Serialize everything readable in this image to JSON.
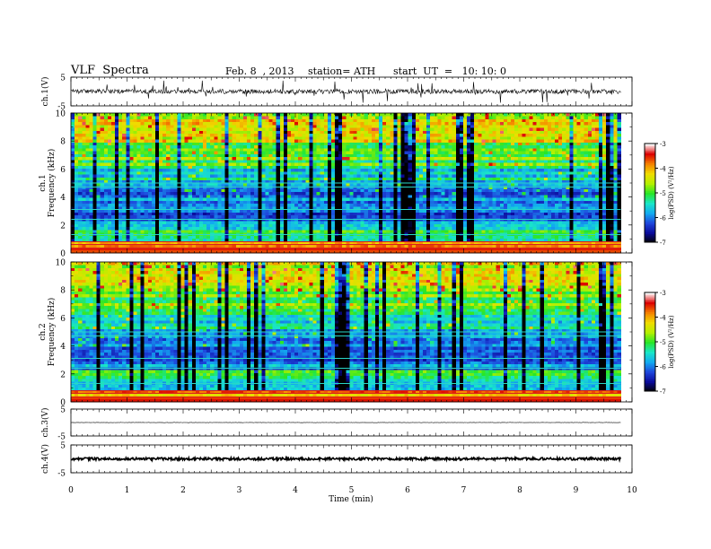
{
  "header": {
    "title": "VLF  Spectra",
    "date": "Feb. 8  , 2013",
    "station": "station= ATH",
    "start": "start  UT  =   10: 10: 0"
  },
  "chart_data": [
    {
      "type": "line",
      "channel_label": "ch.1(V)",
      "ylabel": "ch.1(V)",
      "ylim": [
        -5,
        5
      ],
      "yticks": [
        "5",
        "-5"
      ],
      "xlim": [
        0,
        10
      ],
      "x_end_min": 9.8,
      "series": [
        {
          "description": "noisy waveform centered near 0 V",
          "x": [
            0,
            9.8
          ],
          "y": [
            0,
            0
          ]
        }
      ]
    },
    {
      "type": "heatmap",
      "ylabel_top": "ch.1",
      "ylabel": "Frequency  (kHz)",
      "ylim": [
        0,
        10
      ],
      "yticks": [
        "0",
        "2",
        "4",
        "6",
        "8",
        "10"
      ],
      "xlim": [
        0,
        10
      ],
      "x_end_min": 9.8,
      "colorbar": {
        "label": "log(PSD) (V²/Hz)",
        "range": [
          -7,
          -3
        ],
        "ticks": [
          "-3",
          "-4",
          "-5",
          "-6",
          "-7"
        ]
      }
    },
    {
      "type": "heatmap",
      "ylabel_top": "ch.2",
      "ylabel": "Frequency  (kHz)",
      "ylim": [
        0,
        10
      ],
      "yticks": [
        "0",
        "2",
        "4",
        "6",
        "8",
        "10"
      ],
      "xlim": [
        0,
        10
      ],
      "x_end_min": 9.8,
      "colorbar": {
        "label": "log(PSD) (V²/Hz)",
        "range": [
          -7,
          -3
        ],
        "ticks": [
          "-3",
          "-4",
          "-5",
          "-6",
          "-7"
        ]
      }
    },
    {
      "type": "line",
      "channel_label": "ch.3(V)",
      "ylabel": "ch.3(V)",
      "ylim": [
        -5,
        5
      ],
      "yticks": [
        "5",
        "-5"
      ],
      "xlim": [
        0,
        10
      ],
      "x_end_min": 9.8,
      "series": [
        {
          "description": "flat trace near 0 V",
          "x": [
            0,
            9.8
          ],
          "y": [
            0,
            0
          ]
        }
      ]
    },
    {
      "type": "line",
      "channel_label": "ch.4(V)",
      "ylabel": "ch.4(V)",
      "ylim": [
        -5,
        5
      ],
      "yticks": [
        "5",
        "-5"
      ],
      "xlim": [
        0,
        10
      ],
      "x_end_min": 9.8,
      "series": [
        {
          "description": "dense thick trace near 0 V",
          "x": [
            0,
            9.8
          ],
          "y": [
            0,
            0
          ]
        }
      ]
    }
  ],
  "xaxis": {
    "label": "Time  (min)",
    "ticks": [
      "0",
      "1",
      "2",
      "3",
      "4",
      "5",
      "6",
      "7",
      "8",
      "9",
      "10"
    ]
  },
  "colors": {
    "colormap": [
      "#000000",
      "#0a0a9a",
      "#1e46dc",
      "#12aaf0",
      "#19e6c8",
      "#28e628",
      "#b4f000",
      "#f0dc00",
      "#f58200",
      "#dc0000",
      "#ffffff"
    ]
  }
}
